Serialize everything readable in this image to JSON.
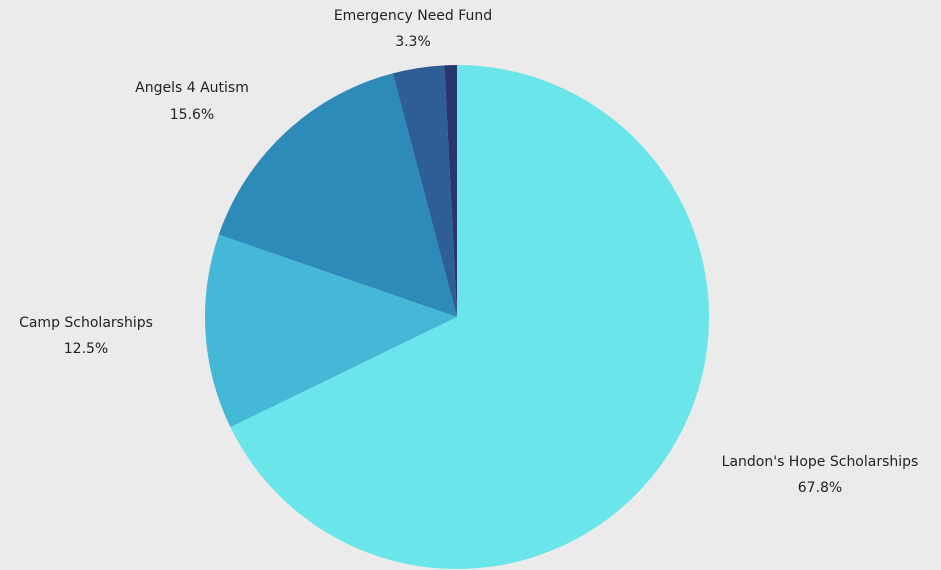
{
  "chart_data": {
    "type": "pie",
    "start_angle_deg": 0,
    "direction": "clockwise",
    "slices": [
      {
        "label": "Landon's Hope Scholarships",
        "value": 67.8,
        "value_label": "67.8%",
        "color": "#6ae5e9"
      },
      {
        "label": "Camp Scholarships",
        "value": 12.5,
        "value_label": "12.5%",
        "color": "#44b8d6"
      },
      {
        "label": "Angels 4 Autism",
        "value": 15.6,
        "value_label": "15.6%",
        "color": "#2d8ab9"
      },
      {
        "label": "Emergency Need Fund",
        "value": 3.3,
        "value_label": "3.3%",
        "color": "#2d5e96"
      },
      {
        "label": "",
        "value": 0.8,
        "value_label": "",
        "color": "#2a3670"
      }
    ]
  },
  "colors": {
    "background": "#ebebeb",
    "text": "#222222"
  }
}
